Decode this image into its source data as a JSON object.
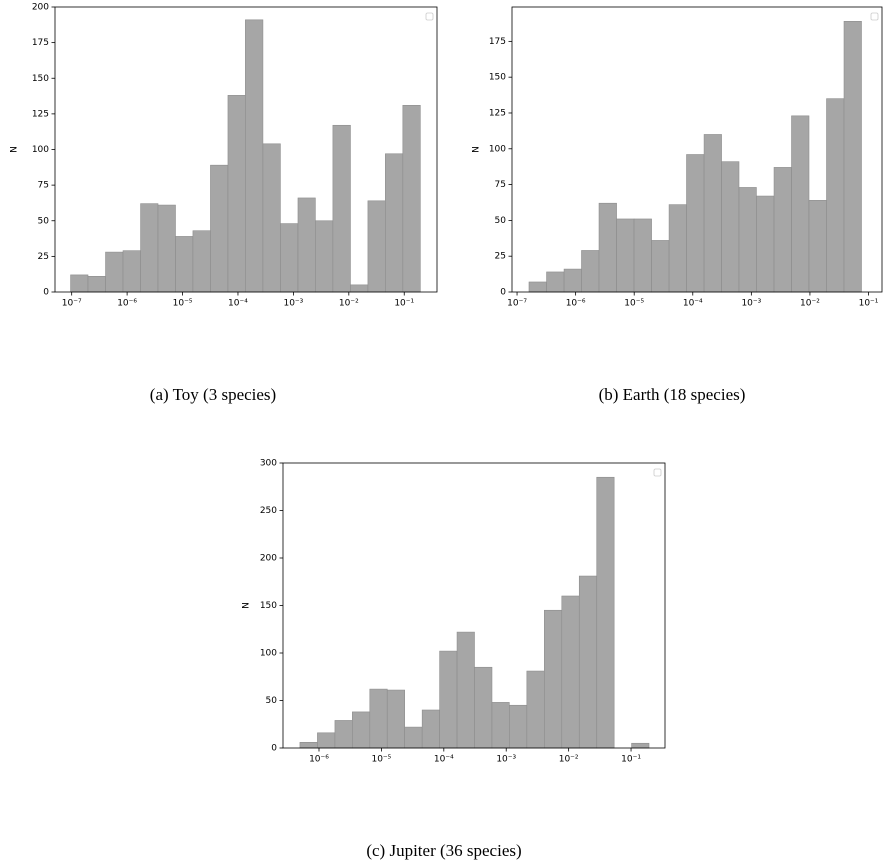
{
  "chart_data": [
    {
      "type": "histogram",
      "caption": "(a) Toy (3 species)",
      "ylabel": "N",
      "xscale": "log",
      "color": "#a6a6a6",
      "edgecolor": "#8c8c8c",
      "bins": [
        9.55e-08,
        1.97e-07,
        4.08e-07,
        8.44e-07,
        1.75e-06,
        3.61e-06,
        7.46e-06,
        1.54e-05,
        3.19e-05,
        6.6e-05,
        0.000136,
        0.000282,
        0.000583,
        0.00121,
        0.00249,
        0.00516,
        0.0107,
        0.0221,
        0.0456,
        0.0943,
        0.195
      ],
      "values": [
        12,
        11,
        28,
        29,
        62,
        61,
        39,
        43,
        89,
        138,
        191,
        104,
        48,
        66,
        50,
        117,
        5,
        64,
        97,
        131
      ],
      "xlim": [
        5e-08,
        0.39
      ],
      "ylim": [
        0,
        200
      ],
      "xticks": [
        {
          "value": 1e-07,
          "label": "10⁻⁷"
        },
        {
          "value": 1e-06,
          "label": "10⁻⁶"
        },
        {
          "value": 1e-05,
          "label": "10⁻⁵"
        },
        {
          "value": 0.0001,
          "label": "10⁻⁴"
        },
        {
          "value": 0.001,
          "label": "10⁻³"
        },
        {
          "value": 0.01,
          "label": "10⁻²"
        },
        {
          "value": 0.1,
          "label": "10⁻¹"
        }
      ],
      "yticks": [
        0,
        25,
        50,
        75,
        100,
        125,
        150,
        175,
        200
      ]
    },
    {
      "type": "histogram",
      "caption": "(b) Earth (18 species)",
      "ylabel": "N",
      "xscale": "log",
      "color": "#a6a6a6",
      "edgecolor": "#8c8c8c",
      "bins": [
        1.6e-07,
        3.19e-07,
        6.35e-07,
        1.26e-06,
        2.51e-06,
        5e-06,
        9.94e-06,
        1.98e-05,
        3.94e-05,
        7.82e-05,
        0.000156,
        0.00031,
        0.000615,
        0.00122,
        0.00244,
        0.00485,
        0.00964,
        0.0192,
        0.0382,
        0.0759
      ],
      "values": [
        7,
        14,
        16,
        29,
        62,
        51,
        51,
        36,
        61,
        96,
        110,
        91,
        73,
        67,
        87,
        123,
        64,
        135,
        189
      ],
      "xlim": [
        8.2e-08,
        0.17
      ],
      "ylim": [
        0,
        199
      ],
      "xticks": [
        {
          "value": 1e-07,
          "label": "10⁻⁷"
        },
        {
          "value": 1e-06,
          "label": "10⁻⁶"
        },
        {
          "value": 1e-05,
          "label": "10⁻⁵"
        },
        {
          "value": 0.0001,
          "label": "10⁻⁴"
        },
        {
          "value": 0.001,
          "label": "10⁻³"
        },
        {
          "value": 0.01,
          "label": "10⁻²"
        },
        {
          "value": 0.1,
          "label": "10⁻¹"
        }
      ],
      "yticks": [
        0,
        25,
        50,
        75,
        100,
        125,
        150,
        175
      ]
    },
    {
      "type": "histogram",
      "caption": "(c) Jupiter (36 species)",
      "ylabel": "N",
      "xscale": "log",
      "color": "#a6a6a6",
      "edgecolor": "#8c8c8c",
      "bins": [
        4.95e-07,
        9.44e-07,
        1.8e-06,
        3.42e-06,
        6.52e-06,
        1.24e-05,
        2.36e-05,
        4.5e-05,
        8.57e-05,
        0.000163,
        0.00031,
        0.000591,
        0.00112,
        0.00214,
        0.00408,
        0.00777,
        0.0148,
        0.0282,
        0.0536,
        0.102,
        0.194
      ],
      "values": [
        6,
        16,
        29,
        38,
        62,
        61,
        22,
        40,
        102,
        122,
        85,
        48,
        45,
        81,
        145,
        160,
        181,
        285,
        0,
        5
      ],
      "xlim": [
        2.65e-07,
        0.35
      ],
      "ylim": [
        0,
        300
      ],
      "xticks": [
        {
          "value": 1e-06,
          "label": "10⁻⁶"
        },
        {
          "value": 1e-05,
          "label": "10⁻⁵"
        },
        {
          "value": 0.0001,
          "label": "10⁻⁴"
        },
        {
          "value": 0.001,
          "label": "10⁻³"
        },
        {
          "value": 0.01,
          "label": "10⁻²"
        },
        {
          "value": 0.1,
          "label": "10⁻¹"
        }
      ],
      "yticks": [
        0,
        50,
        100,
        150,
        200,
        250,
        300
      ]
    }
  ]
}
